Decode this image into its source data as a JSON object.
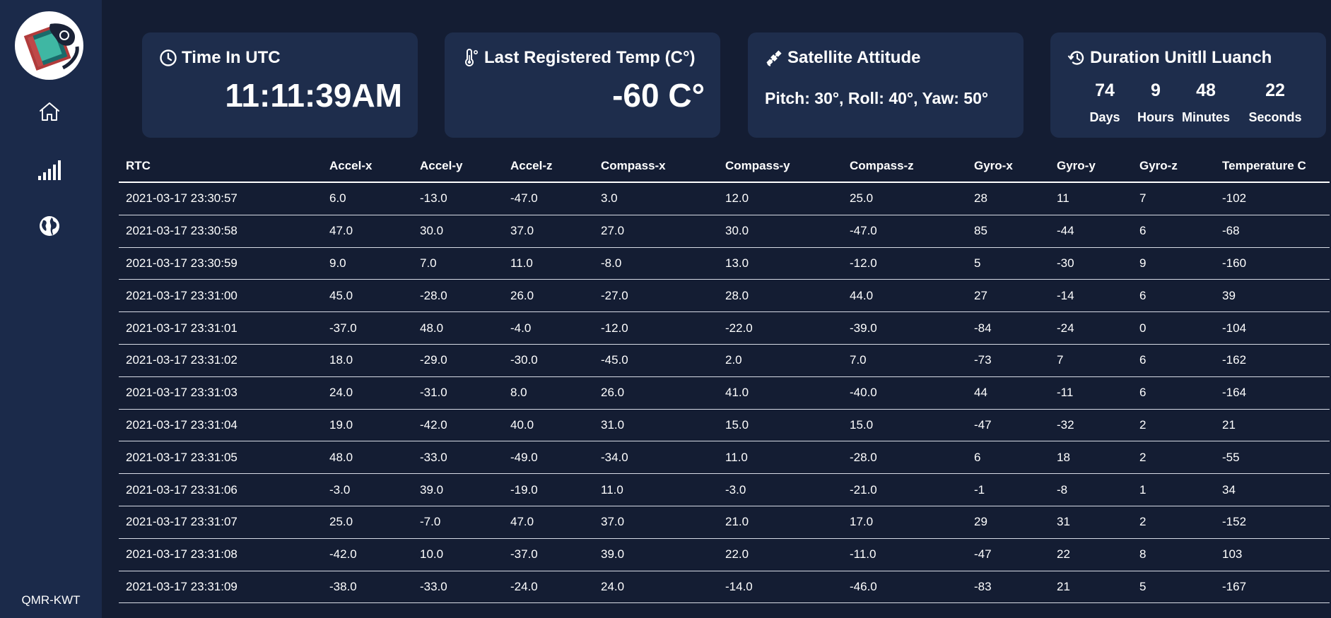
{
  "sidebar": {
    "logo_icon": "mission-patch-logo",
    "nav": [
      {
        "icon": "home-icon"
      },
      {
        "icon": "signal-bars-icon"
      },
      {
        "icon": "globe-icon"
      }
    ],
    "footer_label": "QMR-KWT"
  },
  "cards": {
    "time": {
      "icon": "clock-icon",
      "title": "Time In UTC",
      "value": "11:11:39AM"
    },
    "temp": {
      "icon": "thermometer-icon",
      "title": "Last Registered Temp (C°)",
      "value": "-60 C°"
    },
    "attitude": {
      "icon": "satellite-icon",
      "title": "Satellite Attitude",
      "value": "Pitch: 30°, Roll: 40°, Yaw: 50°"
    },
    "duration": {
      "icon": "history-icon",
      "title": "Duration Unitll Luanch",
      "units": [
        {
          "value": "74",
          "label": "Days"
        },
        {
          "value": "9",
          "label": "Hours"
        },
        {
          "value": "48",
          "label": "Minutes"
        },
        {
          "value": "22",
          "label": "Seconds"
        }
      ]
    }
  },
  "table": {
    "columns": [
      "RTC",
      "Accel-x",
      "Accel-y",
      "Accel-z",
      "Compass-x",
      "Compass-y",
      "Compass-z",
      "Gyro-x",
      "Gyro-y",
      "Gyro-z",
      "Temperature C"
    ],
    "rows": [
      [
        "2021-03-17 23:30:57",
        "6.0",
        "-13.0",
        "-47.0",
        "3.0",
        "12.0",
        "25.0",
        "28",
        "11",
        "7",
        "-102"
      ],
      [
        "2021-03-17 23:30:58",
        "47.0",
        "30.0",
        "37.0",
        "27.0",
        "30.0",
        "-47.0",
        "85",
        "-44",
        "6",
        "-68"
      ],
      [
        "2021-03-17 23:30:59",
        "9.0",
        "7.0",
        "11.0",
        "-8.0",
        "13.0",
        "-12.0",
        "5",
        "-30",
        "9",
        "-160"
      ],
      [
        "2021-03-17 23:31:00",
        "45.0",
        "-28.0",
        "26.0",
        "-27.0",
        "28.0",
        "44.0",
        "27",
        "-14",
        "6",
        "39"
      ],
      [
        "2021-03-17 23:31:01",
        "-37.0",
        "48.0",
        "-4.0",
        "-12.0",
        "-22.0",
        "-39.0",
        "-84",
        "-24",
        "0",
        "-104"
      ],
      [
        "2021-03-17 23:31:02",
        "18.0",
        "-29.0",
        "-30.0",
        "-45.0",
        "2.0",
        "7.0",
        "-73",
        "7",
        "6",
        "-162"
      ],
      [
        "2021-03-17 23:31:03",
        "24.0",
        "-31.0",
        "8.0",
        "26.0",
        "41.0",
        "-40.0",
        "44",
        "-11",
        "6",
        "-164"
      ],
      [
        "2021-03-17 23:31:04",
        "19.0",
        "-42.0",
        "40.0",
        "31.0",
        "15.0",
        "15.0",
        "-47",
        "-32",
        "2",
        "21"
      ],
      [
        "2021-03-17 23:31:05",
        "48.0",
        "-33.0",
        "-49.0",
        "-34.0",
        "11.0",
        "-28.0",
        "6",
        "18",
        "2",
        "-55"
      ],
      [
        "2021-03-17 23:31:06",
        "-3.0",
        "39.0",
        "-19.0",
        "11.0",
        "-3.0",
        "-21.0",
        "-1",
        "-8",
        "1",
        "34"
      ],
      [
        "2021-03-17 23:31:07",
        "25.0",
        "-7.0",
        "47.0",
        "37.0",
        "21.0",
        "17.0",
        "29",
        "31",
        "2",
        "-152"
      ],
      [
        "2021-03-17 23:31:08",
        "-42.0",
        "10.0",
        "-37.0",
        "39.0",
        "22.0",
        "-11.0",
        "-47",
        "22",
        "8",
        "103"
      ],
      [
        "2021-03-17 23:31:09",
        "-38.0",
        "-33.0",
        "-24.0",
        "24.0",
        "-14.0",
        "-46.0",
        "-83",
        "21",
        "5",
        "-167"
      ]
    ]
  }
}
